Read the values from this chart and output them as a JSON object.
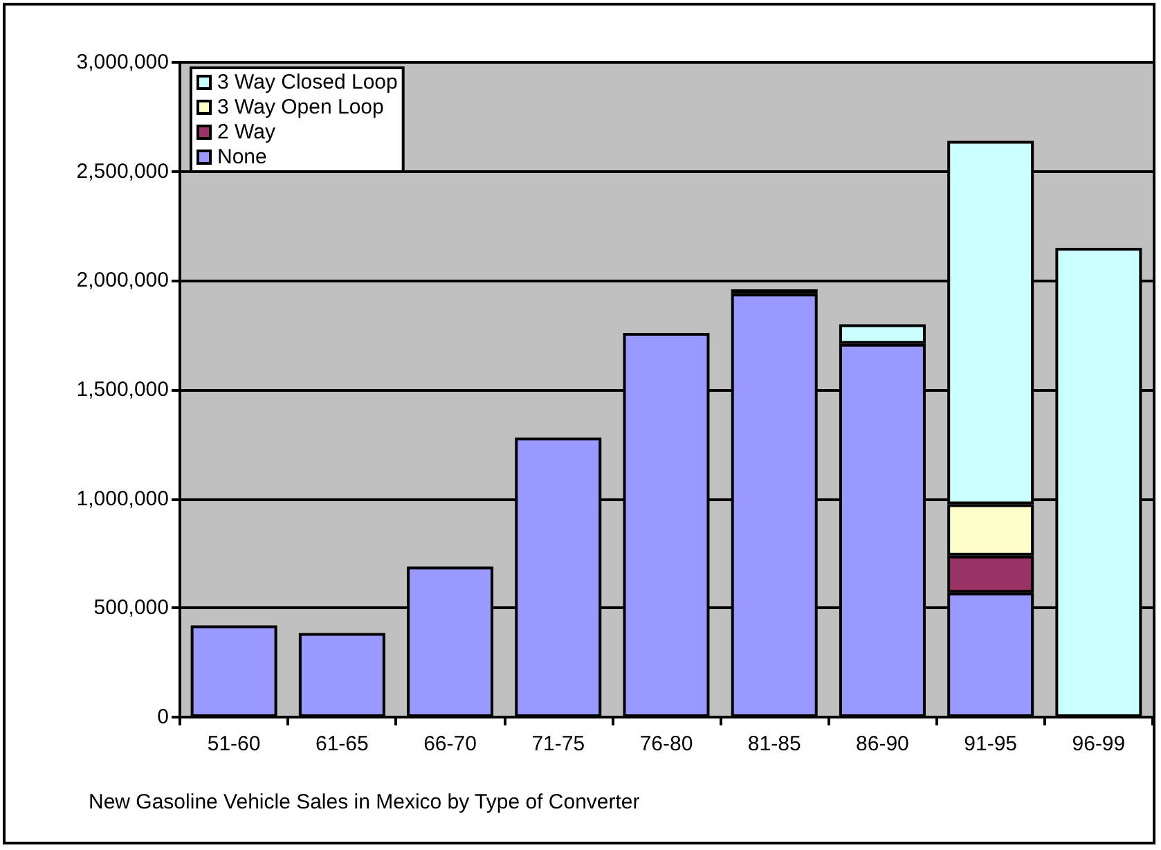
{
  "chart_data": {
    "type": "bar",
    "title": "New Gasoline Vehicle Sales in Mexico by Type of Converter",
    "stacked": true,
    "categories": [
      "51-60",
      "61-65",
      "66-70",
      "71-75",
      "76-80",
      "81-85",
      "86-90",
      "91-95",
      "96-99"
    ],
    "series": [
      {
        "name": "None",
        "color": "#9999ff",
        "values": [
          420000,
          385000,
          690000,
          1280000,
          1760000,
          1940000,
          1710000,
          570000,
          null
        ]
      },
      {
        "name": "2 Way",
        "color": "#993366",
        "values": [
          null,
          null,
          null,
          null,
          null,
          20000,
          null,
          170000,
          null
        ]
      },
      {
        "name": "3 Way Open Loop",
        "color": "#ffffcc",
        "values": [
          null,
          null,
          null,
          null,
          null,
          null,
          null,
          235000,
          null
        ]
      },
      {
        "name": "3 Way Closed Loop",
        "color": "#ccffff",
        "values": [
          null,
          null,
          null,
          null,
          null,
          null,
          90000,
          1665000,
          2150000
        ]
      }
    ],
    "ylim": [
      0,
      3000000
    ],
    "yticks": [
      {
        "value": 0,
        "label": "0"
      },
      {
        "value": 500000,
        "label": "500,000"
      },
      {
        "value": 1000000,
        "label": "1,000,000"
      },
      {
        "value": 1500000,
        "label": "1,500,000"
      },
      {
        "value": 2000000,
        "label": "2,000,000"
      },
      {
        "value": 2500000,
        "label": "2,500,000"
      },
      {
        "value": 3000000,
        "label": "3,000,000"
      }
    ],
    "grid": "y",
    "legend": "top left"
  }
}
